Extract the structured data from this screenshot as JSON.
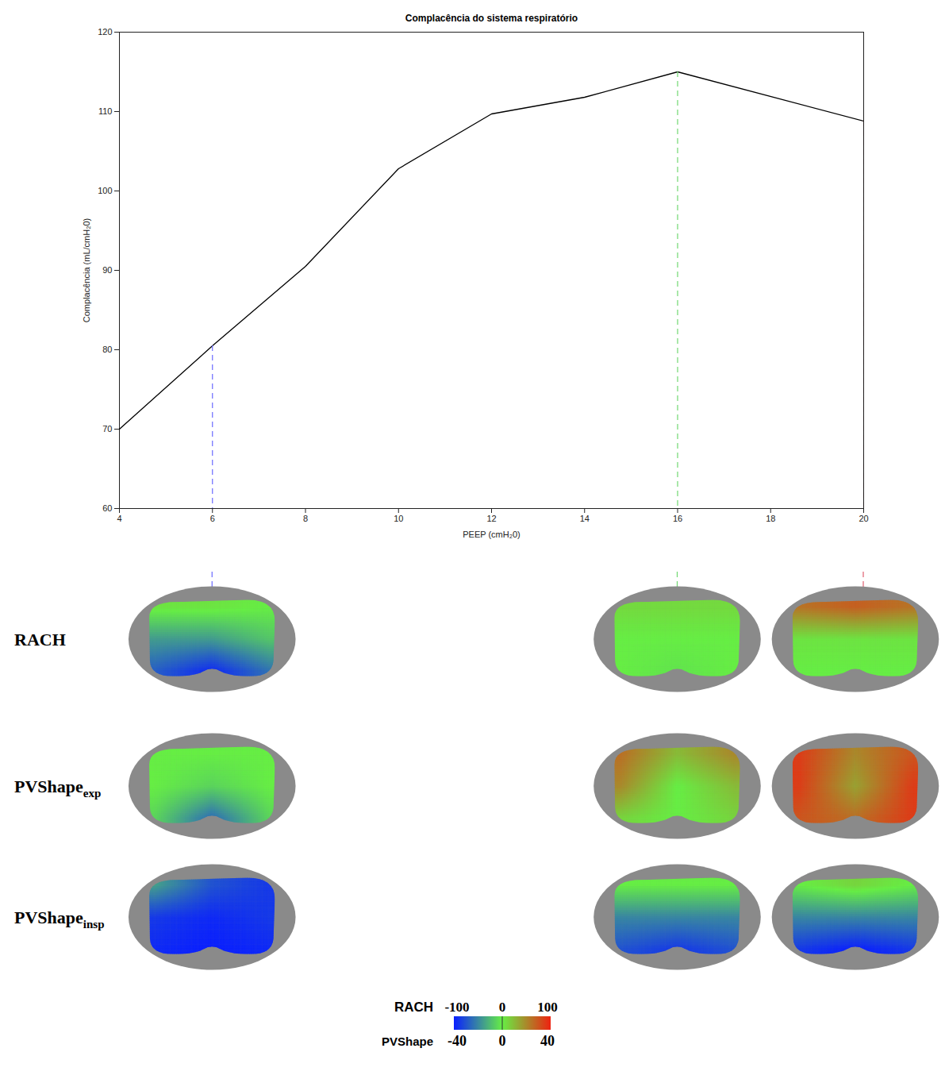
{
  "chart_data": {
    "type": "line",
    "title": "Complacência do sistema respiratório",
    "x_label": "PEEP (cmH₂0)",
    "y_label": "Complacência (mL/cmH₂0)",
    "x": [
      4,
      6,
      8,
      10,
      12,
      14,
      16,
      20
    ],
    "values": [
      70,
      80.5,
      90.5,
      102.8,
      109.7,
      111.8,
      115,
      108.8
    ],
    "color": "#000000",
    "xlim": [
      4,
      20
    ],
    "xticks": [
      4,
      6,
      8,
      10,
      12,
      14,
      16,
      18,
      20
    ],
    "ylim": [
      60,
      120
    ],
    "yticks": [
      60,
      70,
      80,
      90,
      100,
      110,
      120
    ],
    "grid": false,
    "rows": [
      {
        "label": "RACH",
        "scale": "RACH"
      },
      {
        "label": "PVShape",
        "subscript": "exp",
        "scale": "PVShape"
      },
      {
        "label": "PVShape",
        "subscript": "insp",
        "scale": "PVShape"
      }
    ],
    "columns": [
      {
        "x": 6,
        "color": "#6a6aff",
        "grids": [
          [
            [
              5,
              5,
              0
            ],
            [
              -40,
              -40,
              -20
            ],
            [
              -70,
              -95,
              -60
            ]
          ],
          [
            [
              0,
              0,
              0
            ],
            [
              0,
              -5,
              0
            ],
            [
              -5,
              -25,
              -5
            ]
          ],
          [
            [
              -15,
              -30,
              -35
            ],
            [
              -35,
              -38,
              -35
            ],
            [
              -38,
              -40,
              -38
            ]
          ]
        ]
      },
      {
        "x": 16,
        "color": "#70d870",
        "grids": [
          [
            [
              10,
              10,
              10
            ],
            [
              0,
              0,
              0
            ],
            [
              0,
              -5,
              0
            ]
          ],
          [
            [
              25,
              10,
              20
            ],
            [
              20,
              0,
              10
            ],
            [
              5,
              0,
              5
            ]
          ],
          [
            [
              0,
              0,
              0
            ],
            [
              -20,
              -20,
              -20
            ],
            [
              -30,
              -35,
              -30
            ]
          ]
        ]
      },
      {
        "x": 20,
        "color": "#e06070",
        "grids": [
          [
            [
              60,
              70,
              60
            ],
            [
              5,
              5,
              5
            ],
            [
              0,
              0,
              0
            ]
          ],
          [
            [
              35,
              20,
              30
            ],
            [
              35,
              15,
              35
            ],
            [
              30,
              25,
              35
            ]
          ],
          [
            [
              0,
              5,
              0
            ],
            [
              -20,
              -20,
              -20
            ],
            [
              -35,
              -40,
              -35
            ]
          ]
        ]
      }
    ],
    "colorbar": {
      "colors": [
        "#0a1fff",
        "#66ee44",
        "#ee2211"
      ],
      "scales": [
        {
          "label": "RACH",
          "ticks": [
            -100,
            0,
            100
          ]
        },
        {
          "label": "PVShape",
          "ticks": [
            -40,
            0,
            40
          ]
        }
      ]
    }
  }
}
